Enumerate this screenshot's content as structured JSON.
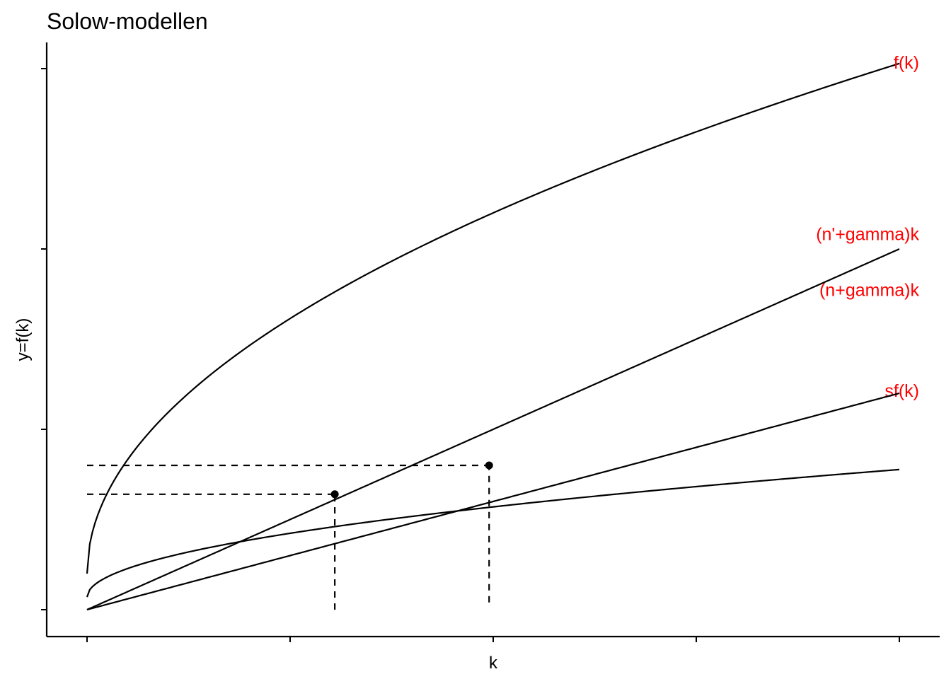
{
  "chart_data": {
    "type": "line",
    "title": "Solow-modellen",
    "xlabel": "k",
    "ylabel": "y=f(k)",
    "xlim": [
      -0.1,
      2.1
    ],
    "ylim": [
      -0.15,
      3.15
    ],
    "x_ticks": [
      0,
      0.5,
      1,
      1.5,
      2
    ],
    "y_ticks": [
      0,
      1,
      2,
      3
    ],
    "tick_labels_shown": false,
    "grid": false,
    "label_color": "#ff0000",
    "series": [
      {
        "name": "f(k)",
        "function": "power",
        "coef": 2,
        "exponent": 0.5,
        "offset": 0.2,
        "label_pos": [
          2,
          3.0
        ]
      },
      {
        "name": "sf(k)",
        "function": "power",
        "coef": 0.5,
        "exponent": 0.5,
        "offset": 0.07,
        "label_pos": [
          2,
          1.18
        ]
      },
      {
        "name": "(n'+gamma)k",
        "function": "linear",
        "slope": 1.0,
        "label_pos": [
          2,
          2.05
        ]
      },
      {
        "name": "(n+gamma)k",
        "function": "linear",
        "slope": 0.6,
        "label_pos": [
          2,
          1.74
        ]
      }
    ],
    "equilibria": [
      {
        "k": 0.61,
        "y": 0.64
      },
      {
        "k": 0.99,
        "y": 0.8
      }
    ],
    "reference_lines": [
      {
        "type": "horizontal",
        "y": 0.64,
        "x_from": 0,
        "x_to": 0.61
      },
      {
        "type": "vertical",
        "x": 0.61,
        "y_from": 0,
        "y_to": 0.64
      },
      {
        "type": "horizontal",
        "y": 0.8,
        "x_from": 0,
        "x_to": 0.99
      },
      {
        "type": "vertical",
        "x": 0.99,
        "y_from": 0.04,
        "y_to": 0.8
      }
    ]
  }
}
